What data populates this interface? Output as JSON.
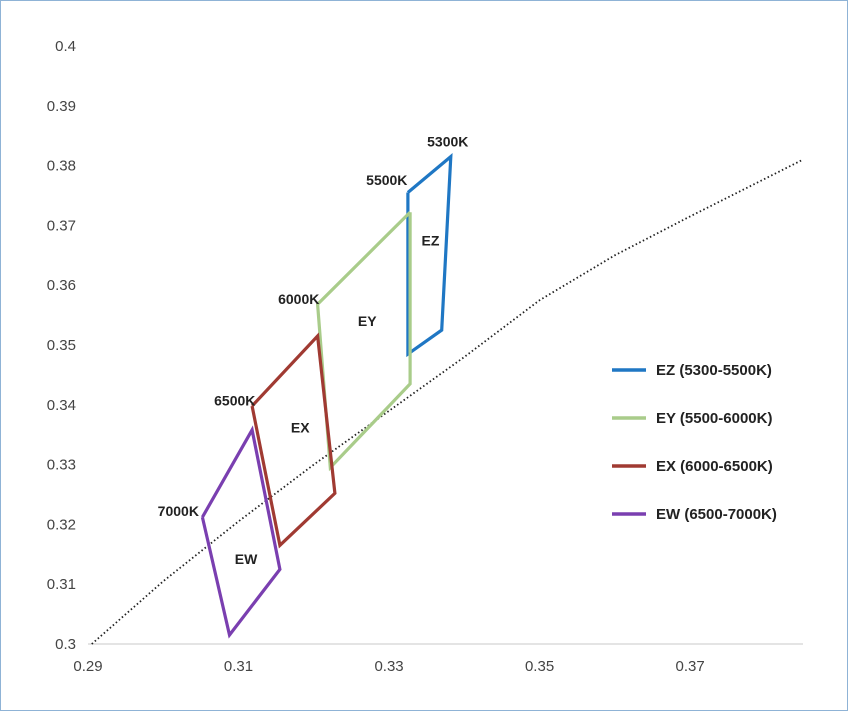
{
  "chart_data": {
    "type": "line",
    "title": "",
    "xlabel": "",
    "ylabel": "",
    "xlim": [
      0.29,
      0.385
    ],
    "ylim": [
      0.3,
      0.4
    ],
    "x_ticks": [
      "0.29",
      "0.31",
      "0.33",
      "0.35",
      "0.37"
    ],
    "x_tick_values": [
      0.29,
      0.31,
      0.33,
      0.35,
      0.37
    ],
    "y_ticks": [
      "0.3",
      "0.31",
      "0.32",
      "0.33",
      "0.34",
      "0.35",
      "0.36",
      "0.37",
      "0.38",
      "0.39",
      "0.4"
    ],
    "y_tick_values": [
      0.3,
      0.31,
      0.32,
      0.33,
      0.34,
      0.35,
      0.36,
      0.37,
      0.38,
      0.39,
      0.4
    ],
    "grid": false,
    "legend_position": "right",
    "locus": {
      "style": "dotted",
      "color": "#222222",
      "points": [
        [
          0.2905,
          0.3
        ],
        [
          0.3,
          0.3105
        ],
        [
          0.31,
          0.3205
        ],
        [
          0.32,
          0.33
        ],
        [
          0.33,
          0.339
        ],
        [
          0.34,
          0.348
        ],
        [
          0.35,
          0.3575
        ],
        [
          0.36,
          0.365
        ],
        [
          0.37,
          0.3715
        ],
        [
          0.385,
          0.381
        ]
      ]
    },
    "series": [
      {
        "name": "EZ (5300-5500K)",
        "color": "#1f77c4",
        "points": [
          [
            0.3325,
            0.3755
          ],
          [
            0.3382,
            0.3815
          ],
          [
            0.337,
            0.3525
          ],
          [
            0.3325,
            0.3485
          ],
          [
            0.3325,
            0.3755
          ]
        ]
      },
      {
        "name": "EY (5500-6000K)",
        "color": "#a9cc8a",
        "points": [
          [
            0.3328,
            0.3722
          ],
          [
            0.3205,
            0.3568
          ],
          [
            0.3222,
            0.3295
          ],
          [
            0.3328,
            0.3435
          ],
          [
            0.3328,
            0.3722
          ]
        ]
      },
      {
        "name": "EX (6000-6500K)",
        "color": "#a03a32",
        "points": [
          [
            0.3118,
            0.3398
          ],
          [
            0.3205,
            0.3515
          ],
          [
            0.3228,
            0.3252
          ],
          [
            0.3155,
            0.3165
          ],
          [
            0.3118,
            0.3398
          ]
        ]
      },
      {
        "name": "EW (6500-7000K)",
        "color": "#7a3fb0",
        "points": [
          [
            0.3052,
            0.3212
          ],
          [
            0.3118,
            0.3358
          ],
          [
            0.3155,
            0.3125
          ],
          [
            0.3088,
            0.3015
          ],
          [
            0.3052,
            0.3212
          ]
        ]
      }
    ],
    "annotations": [
      {
        "text": "5300K",
        "x": 0.3378,
        "y": 0.384
      },
      {
        "text": "5500K",
        "x": 0.3297,
        "y": 0.3776
      },
      {
        "text": "6000K",
        "x": 0.318,
        "y": 0.3577
      },
      {
        "text": "6500K",
        "x": 0.3095,
        "y": 0.3407
      },
      {
        "text": "7000K",
        "x": 0.302,
        "y": 0.3222
      },
      {
        "text": "EZ",
        "x": 0.3355,
        "y": 0.3675
      },
      {
        "text": "EY",
        "x": 0.3271,
        "y": 0.354
      },
      {
        "text": "EX",
        "x": 0.3182,
        "y": 0.3362
      },
      {
        "text": "EW",
        "x": 0.311,
        "y": 0.3142
      }
    ]
  }
}
